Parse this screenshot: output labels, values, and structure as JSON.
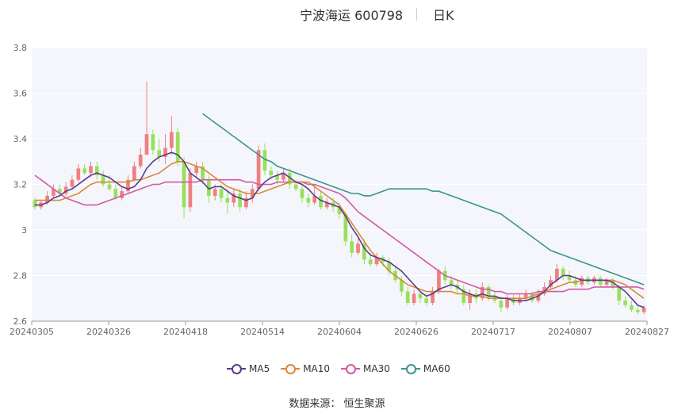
{
  "header": {
    "title": "宁波海运 600798",
    "period": "日K"
  },
  "source": "数据来源： 恒生聚源",
  "colors": {
    "up": "#f08080",
    "down": "#99e05a",
    "ma5": "#5b3a8e",
    "ma10": "#d9883a",
    "ma30": "#d459a6",
    "ma60": "#3a948f",
    "grid": "#e6e6e6",
    "plot_bg": "#f4f6fb"
  },
  "chart_data": {
    "type": "candlestick",
    "y_axis": {
      "min": 2.6,
      "max": 3.8,
      "ticks": [
        "3.8",
        "3.6",
        "3.4",
        "3.2",
        "3",
        "2.8",
        "2.6"
      ]
    },
    "x_axis": {
      "ticks": [
        "20240305",
        "20240326",
        "20240418",
        "20240514",
        "20240604",
        "20240626",
        "20240717",
        "20240807",
        "20240827"
      ]
    },
    "legend": [
      {
        "key": "ma5",
        "label": "MA5"
      },
      {
        "key": "ma10",
        "label": "MA10"
      },
      {
        "key": "ma30",
        "label": "MA30"
      },
      {
        "key": "ma60",
        "label": "MA60"
      }
    ],
    "candles": [
      [
        3.13,
        3.1,
        3.14,
        3.09
      ],
      [
        3.1,
        3.12,
        3.13,
        3.09
      ],
      [
        3.12,
        3.15,
        3.17,
        3.11
      ],
      [
        3.15,
        3.18,
        3.2,
        3.14
      ],
      [
        3.18,
        3.16,
        3.2,
        3.15
      ],
      [
        3.16,
        3.19,
        3.21,
        3.15
      ],
      [
        3.19,
        3.22,
        3.24,
        3.18
      ],
      [
        3.22,
        3.27,
        3.29,
        3.21
      ],
      [
        3.27,
        3.25,
        3.29,
        3.24
      ],
      [
        3.25,
        3.28,
        3.3,
        3.23
      ],
      [
        3.28,
        3.24,
        3.3,
        3.22
      ],
      [
        3.24,
        3.2,
        3.26,
        3.19
      ],
      [
        3.2,
        3.18,
        3.24,
        3.17
      ],
      [
        3.18,
        3.14,
        3.2,
        3.13
      ],
      [
        3.14,
        3.17,
        3.19,
        3.13
      ],
      [
        3.17,
        3.22,
        3.24,
        3.16
      ],
      [
        3.22,
        3.28,
        3.3,
        3.21
      ],
      [
        3.28,
        3.33,
        3.36,
        3.27
      ],
      [
        3.33,
        3.42,
        3.65,
        3.41
      ],
      [
        3.42,
        3.35,
        3.44,
        3.33
      ],
      [
        3.35,
        3.32,
        3.4,
        3.3
      ],
      [
        3.32,
        3.36,
        3.42,
        3.29
      ],
      [
        3.36,
        3.43,
        3.5,
        3.33
      ],
      [
        3.43,
        3.3,
        3.45,
        3.28
      ],
      [
        3.3,
        3.1,
        3.32,
        3.05
      ],
      [
        3.1,
        3.25,
        3.27,
        3.08
      ],
      [
        3.25,
        3.28,
        3.3,
        3.23
      ],
      [
        3.28,
        3.22,
        3.3,
        3.2
      ],
      [
        3.22,
        3.15,
        3.24,
        3.12
      ],
      [
        3.15,
        3.18,
        3.2,
        3.13
      ],
      [
        3.18,
        3.14,
        3.2,
        3.12
      ],
      [
        3.14,
        3.12,
        3.18,
        3.07
      ],
      [
        3.12,
        3.16,
        3.18,
        3.1
      ],
      [
        3.16,
        3.1,
        3.18,
        3.08
      ],
      [
        3.1,
        3.14,
        3.17,
        3.09
      ],
      [
        3.14,
        3.18,
        3.2,
        3.12
      ],
      [
        3.18,
        3.35,
        3.37,
        3.17
      ],
      [
        3.35,
        3.26,
        3.38,
        3.24
      ],
      [
        3.26,
        3.24,
        3.28,
        3.22
      ],
      [
        3.24,
        3.22,
        3.26,
        3.2
      ],
      [
        3.22,
        3.25,
        3.27,
        3.21
      ],
      [
        3.25,
        3.2,
        3.27,
        3.18
      ],
      [
        3.2,
        3.18,
        3.22,
        3.17
      ],
      [
        3.18,
        3.14,
        3.2,
        3.12
      ],
      [
        3.14,
        3.12,
        3.16,
        3.1
      ],
      [
        3.12,
        3.15,
        3.2,
        3.11
      ],
      [
        3.15,
        3.1,
        3.17,
        3.09
      ],
      [
        3.1,
        3.12,
        3.14,
        3.09
      ],
      [
        3.12,
        3.1,
        3.14,
        3.08
      ],
      [
        3.1,
        3.07,
        3.12,
        3.05
      ],
      [
        3.07,
        2.95,
        3.08,
        2.93
      ],
      [
        2.95,
        2.9,
        2.98,
        2.88
      ],
      [
        2.9,
        2.94,
        2.96,
        2.89
      ],
      [
        2.94,
        2.87,
        2.96,
        2.85
      ],
      [
        2.87,
        2.85,
        2.9,
        2.84
      ],
      [
        2.85,
        2.88,
        2.9,
        2.84
      ],
      [
        2.88,
        2.86,
        2.89,
        2.84
      ],
      [
        2.86,
        2.82,
        2.88,
        2.8
      ],
      [
        2.82,
        2.78,
        2.84,
        2.77
      ],
      [
        2.78,
        2.73,
        2.8,
        2.71
      ],
      [
        2.73,
        2.68,
        2.75,
        2.67
      ],
      [
        2.68,
        2.72,
        2.74,
        2.67
      ],
      [
        2.72,
        2.7,
        2.73,
        2.68
      ],
      [
        2.7,
        2.68,
        2.72,
        2.67
      ],
      [
        2.68,
        2.73,
        2.75,
        2.67
      ],
      [
        2.73,
        2.82,
        2.83,
        2.72
      ],
      [
        2.82,
        2.78,
        2.84,
        2.76
      ],
      [
        2.78,
        2.76,
        2.8,
        2.74
      ],
      [
        2.76,
        2.74,
        2.78,
        2.72
      ],
      [
        2.74,
        2.68,
        2.76,
        2.67
      ],
      [
        2.68,
        2.72,
        2.74,
        2.65
      ],
      [
        2.72,
        2.7,
        2.74,
        2.68
      ],
      [
        2.7,
        2.75,
        2.77,
        2.69
      ],
      [
        2.75,
        2.71,
        2.76,
        2.69
      ],
      [
        2.71,
        2.69,
        2.73,
        2.68
      ],
      [
        2.69,
        2.66,
        2.71,
        2.64
      ],
      [
        2.66,
        2.7,
        2.72,
        2.65
      ],
      [
        2.7,
        2.68,
        2.72,
        2.67
      ],
      [
        2.68,
        2.7,
        2.72,
        2.67
      ],
      [
        2.7,
        2.72,
        2.74,
        2.69
      ],
      [
        2.72,
        2.69,
        2.73,
        2.68
      ],
      [
        2.69,
        2.72,
        2.74,
        2.68
      ],
      [
        2.72,
        2.75,
        2.77,
        2.71
      ],
      [
        2.75,
        2.78,
        2.8,
        2.74
      ],
      [
        2.78,
        2.83,
        2.85,
        2.77
      ],
      [
        2.83,
        2.8,
        2.84,
        2.78
      ],
      [
        2.8,
        2.78,
        2.82,
        2.77
      ],
      [
        2.78,
        2.76,
        2.8,
        2.75
      ],
      [
        2.76,
        2.79,
        2.8,
        2.75
      ],
      [
        2.79,
        2.77,
        2.8,
        2.76
      ],
      [
        2.77,
        2.79,
        2.8,
        2.76
      ],
      [
        2.79,
        2.76,
        2.8,
        2.75
      ],
      [
        2.76,
        2.78,
        2.79,
        2.75
      ],
      [
        2.78,
        2.75,
        2.79,
        2.74
      ],
      [
        2.75,
        2.69,
        2.76,
        2.67
      ],
      [
        2.69,
        2.67,
        2.71,
        2.66
      ],
      [
        2.67,
        2.65,
        2.69,
        2.64
      ],
      [
        2.65,
        2.64,
        2.67,
        2.63
      ],
      [
        2.64,
        2.66,
        2.67,
        2.63
      ]
    ],
    "ma5": [
      3.11,
      3.11,
      3.12,
      3.14,
      3.15,
      3.17,
      3.18,
      3.2,
      3.22,
      3.24,
      3.25,
      3.24,
      3.23,
      3.21,
      3.19,
      3.18,
      3.19,
      3.22,
      3.27,
      3.3,
      3.32,
      3.33,
      3.34,
      3.33,
      3.3,
      3.25,
      3.23,
      3.21,
      3.18,
      3.19,
      3.19,
      3.17,
      3.15,
      3.14,
      3.13,
      3.14,
      3.18,
      3.21,
      3.23,
      3.24,
      3.25,
      3.23,
      3.21,
      3.2,
      3.18,
      3.15,
      3.13,
      3.12,
      3.11,
      3.1,
      3.06,
      3.01,
      2.97,
      2.92,
      2.89,
      2.88,
      2.87,
      2.86,
      2.84,
      2.82,
      2.79,
      2.76,
      2.73,
      2.71,
      2.72,
      2.74,
      2.75,
      2.76,
      2.75,
      2.73,
      2.72,
      2.71,
      2.72,
      2.71,
      2.71,
      2.7,
      2.7,
      2.69,
      2.69,
      2.69,
      2.7,
      2.71,
      2.73,
      2.76,
      2.78,
      2.8,
      2.8,
      2.79,
      2.78,
      2.78,
      2.78,
      2.78,
      2.78,
      2.77,
      2.75,
      2.73,
      2.7,
      2.67,
      2.66
    ],
    "ma10": [
      3.13,
      3.13,
      3.13,
      3.13,
      3.13,
      3.14,
      3.15,
      3.16,
      3.18,
      3.2,
      3.21,
      3.21,
      3.21,
      3.21,
      3.21,
      3.21,
      3.22,
      3.22,
      3.23,
      3.24,
      3.25,
      3.27,
      3.29,
      3.3,
      3.3,
      3.29,
      3.28,
      3.27,
      3.25,
      3.23,
      3.21,
      3.19,
      3.18,
      3.17,
      3.16,
      3.16,
      3.16,
      3.17,
      3.18,
      3.19,
      3.2,
      3.21,
      3.21,
      3.21,
      3.21,
      3.19,
      3.17,
      3.15,
      3.13,
      3.11,
      3.07,
      3.03,
      2.99,
      2.95,
      2.91,
      2.88,
      2.85,
      2.82,
      2.8,
      2.78,
      2.76,
      2.75,
      2.74,
      2.73,
      2.73,
      2.73,
      2.73,
      2.73,
      2.72,
      2.72,
      2.71,
      2.71,
      2.71,
      2.7,
      2.7,
      2.7,
      2.7,
      2.7,
      2.7,
      2.7,
      2.71,
      2.72,
      2.73,
      2.74,
      2.75,
      2.76,
      2.77,
      2.77,
      2.78,
      2.78,
      2.78,
      2.78,
      2.78,
      2.78,
      2.77,
      2.76,
      2.74,
      2.72,
      2.7
    ],
    "ma30": [
      3.24,
      3.22,
      3.2,
      3.18,
      3.16,
      3.14,
      3.13,
      3.12,
      3.11,
      3.11,
      3.11,
      3.12,
      3.13,
      3.14,
      3.15,
      3.16,
      3.17,
      3.18,
      3.19,
      3.2,
      3.2,
      3.21,
      3.21,
      3.21,
      3.21,
      3.21,
      3.21,
      3.22,
      3.22,
      3.22,
      3.22,
      3.22,
      3.22,
      3.22,
      3.21,
      3.21,
      3.2,
      3.2,
      3.2,
      3.21,
      3.21,
      3.21,
      3.21,
      3.21,
      3.2,
      3.2,
      3.19,
      3.18,
      3.17,
      3.16,
      3.14,
      3.11,
      3.08,
      3.06,
      3.04,
      3.02,
      3.0,
      2.98,
      2.96,
      2.94,
      2.92,
      2.9,
      2.88,
      2.86,
      2.84,
      2.82,
      2.8,
      2.79,
      2.78,
      2.77,
      2.76,
      2.75,
      2.74,
      2.74,
      2.73,
      2.73,
      2.72,
      2.72,
      2.72,
      2.72,
      2.72,
      2.73,
      2.73,
      2.73,
      2.73,
      2.73,
      2.74,
      2.74,
      2.74,
      2.74,
      2.75,
      2.75,
      2.75,
      2.75,
      2.75,
      2.75,
      2.75,
      2.75,
      2.74
    ],
    "ma60": [
      3.51,
      3.49,
      3.47,
      3.45,
      3.43,
      3.41,
      3.39,
      3.37,
      3.35,
      3.33,
      3.31,
      3.3,
      3.28,
      3.27,
      3.26,
      3.25,
      3.24,
      3.23,
      3.22,
      3.21,
      3.2,
      3.19,
      3.18,
      3.17,
      3.16,
      3.16,
      3.15,
      3.15,
      3.16,
      3.17,
      3.18,
      3.18,
      3.18,
      3.18,
      3.18,
      3.18,
      3.18,
      3.17,
      3.17,
      3.16,
      3.15,
      3.14,
      3.13,
      3.12,
      3.11,
      3.1,
      3.09,
      3.08,
      3.07,
      3.05,
      3.03,
      3.01,
      2.99,
      2.97,
      2.95,
      2.93,
      2.91,
      2.9,
      2.89,
      2.88,
      2.87,
      2.86,
      2.85,
      2.84,
      2.83,
      2.82,
      2.81,
      2.8,
      2.79,
      2.78,
      2.77,
      2.76
    ]
  }
}
